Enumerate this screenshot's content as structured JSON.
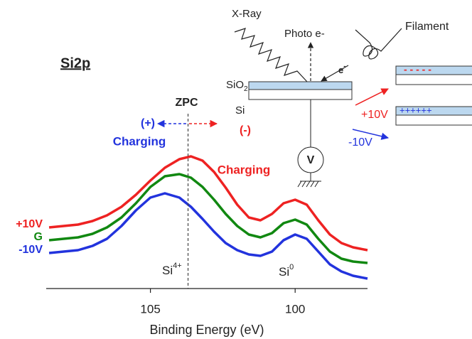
{
  "chart_data": {
    "type": "line",
    "title": "Si2p",
    "x_label": "Binding Energy (eV)",
    "xlim": [
      108.6,
      97.5
    ],
    "xticks": [
      105,
      100
    ],
    "ylim": [
      0,
      200
    ],
    "x": [
      108.5,
      107.5,
      107,
      106.5,
      106,
      105.5,
      105,
      104.5,
      104,
      103.6,
      103.2,
      102.8,
      102.4,
      102,
      101.6,
      101.2,
      100.8,
      100.4,
      100,
      99.6,
      99.2,
      98.8,
      98.4,
      98,
      97.5
    ],
    "series": [
      {
        "name": "+10V",
        "color": "#ee2222",
        "values": [
          86,
          90,
          95,
          103,
          115,
          132,
          152,
          170,
          182,
          186,
          180,
          164,
          142,
          118,
          100,
          96,
          105,
          120,
          125,
          118,
          96,
          76,
          64,
          58,
          54
        ]
      },
      {
        "name": "G",
        "color": "#118811",
        "values": [
          68,
          72,
          77,
          86,
          100,
          120,
          143,
          158,
          161,
          156,
          143,
          125,
          105,
          88,
          76,
          72,
          78,
          92,
          97,
          90,
          70,
          52,
          42,
          38,
          36
        ]
      },
      {
        "name": "-10V",
        "color": "#2233dd",
        "values": [
          50,
          54,
          60,
          70,
          88,
          110,
          128,
          134,
          128,
          115,
          98,
          80,
          64,
          54,
          48,
          46,
          52,
          68,
          76,
          70,
          52,
          34,
          24,
          18,
          14
        ]
      }
    ],
    "zpc": {
      "label": "ZPC",
      "x": 103.7
    },
    "annotations": {
      "plus": "(+)",
      "plus_charging": "Charging",
      "minus": "(-)",
      "minus_charging": "Charging",
      "si4": {
        "text": "Si",
        "sup": "4+"
      },
      "si0": {
        "text": "Si",
        "sup": "0"
      }
    }
  },
  "diagram": {
    "xray": "X-Ray",
    "photo": "Photo e-",
    "filament": "Filament",
    "electron": {
      "text": "e",
      "sup": "-"
    },
    "sio2": {
      "text": "SiO",
      "sub": "2"
    },
    "si": "Si",
    "meter": "V",
    "pos_bias": "+10V",
    "neg_bias": "-10V",
    "neg_charges": "- - - - -",
    "pos_charges": "++++++"
  }
}
